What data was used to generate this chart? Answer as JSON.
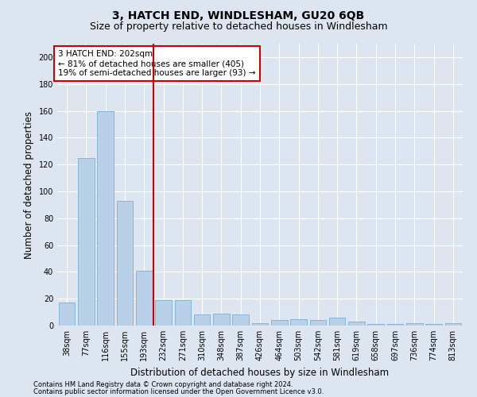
{
  "title": "3, HATCH END, WINDLESHAM, GU20 6QB",
  "subtitle": "Size of property relative to detached houses in Windlesham",
  "xlabel": "Distribution of detached houses by size in Windlesham",
  "ylabel": "Number of detached properties",
  "footnote1": "Contains HM Land Registry data © Crown copyright and database right 2024.",
  "footnote2": "Contains public sector information licensed under the Open Government Licence v3.0.",
  "categories": [
    "38sqm",
    "77sqm",
    "116sqm",
    "155sqm",
    "193sqm",
    "232sqm",
    "271sqm",
    "310sqm",
    "348sqm",
    "387sqm",
    "426sqm",
    "464sqm",
    "503sqm",
    "542sqm",
    "581sqm",
    "619sqm",
    "658sqm",
    "697sqm",
    "736sqm",
    "774sqm",
    "813sqm"
  ],
  "values": [
    17,
    125,
    160,
    93,
    41,
    19,
    19,
    8,
    9,
    8,
    2,
    4,
    5,
    4,
    6,
    3,
    1,
    1,
    2,
    1,
    2
  ],
  "bar_color": "#b8d0e8",
  "bar_edge_color": "#7aafd4",
  "vline_x": 4.5,
  "vline_color": "#cc0000",
  "annotation_text": "3 HATCH END: 202sqm\n← 81% of detached houses are smaller (405)\n19% of semi-detached houses are larger (93) →",
  "annotation_box_color": "#ffffff",
  "annotation_box_edge": "#cc0000",
  "ylim": [
    0,
    210
  ],
  "yticks": [
    0,
    20,
    40,
    60,
    80,
    100,
    120,
    140,
    160,
    180,
    200
  ],
  "background_color": "#dde6f0",
  "grid_color": "#ffffff",
  "title_fontsize": 10,
  "subtitle_fontsize": 9,
  "axis_label_fontsize": 8.5,
  "tick_fontsize": 7,
  "annotation_fontsize": 7.5,
  "footnote_fontsize": 6
}
